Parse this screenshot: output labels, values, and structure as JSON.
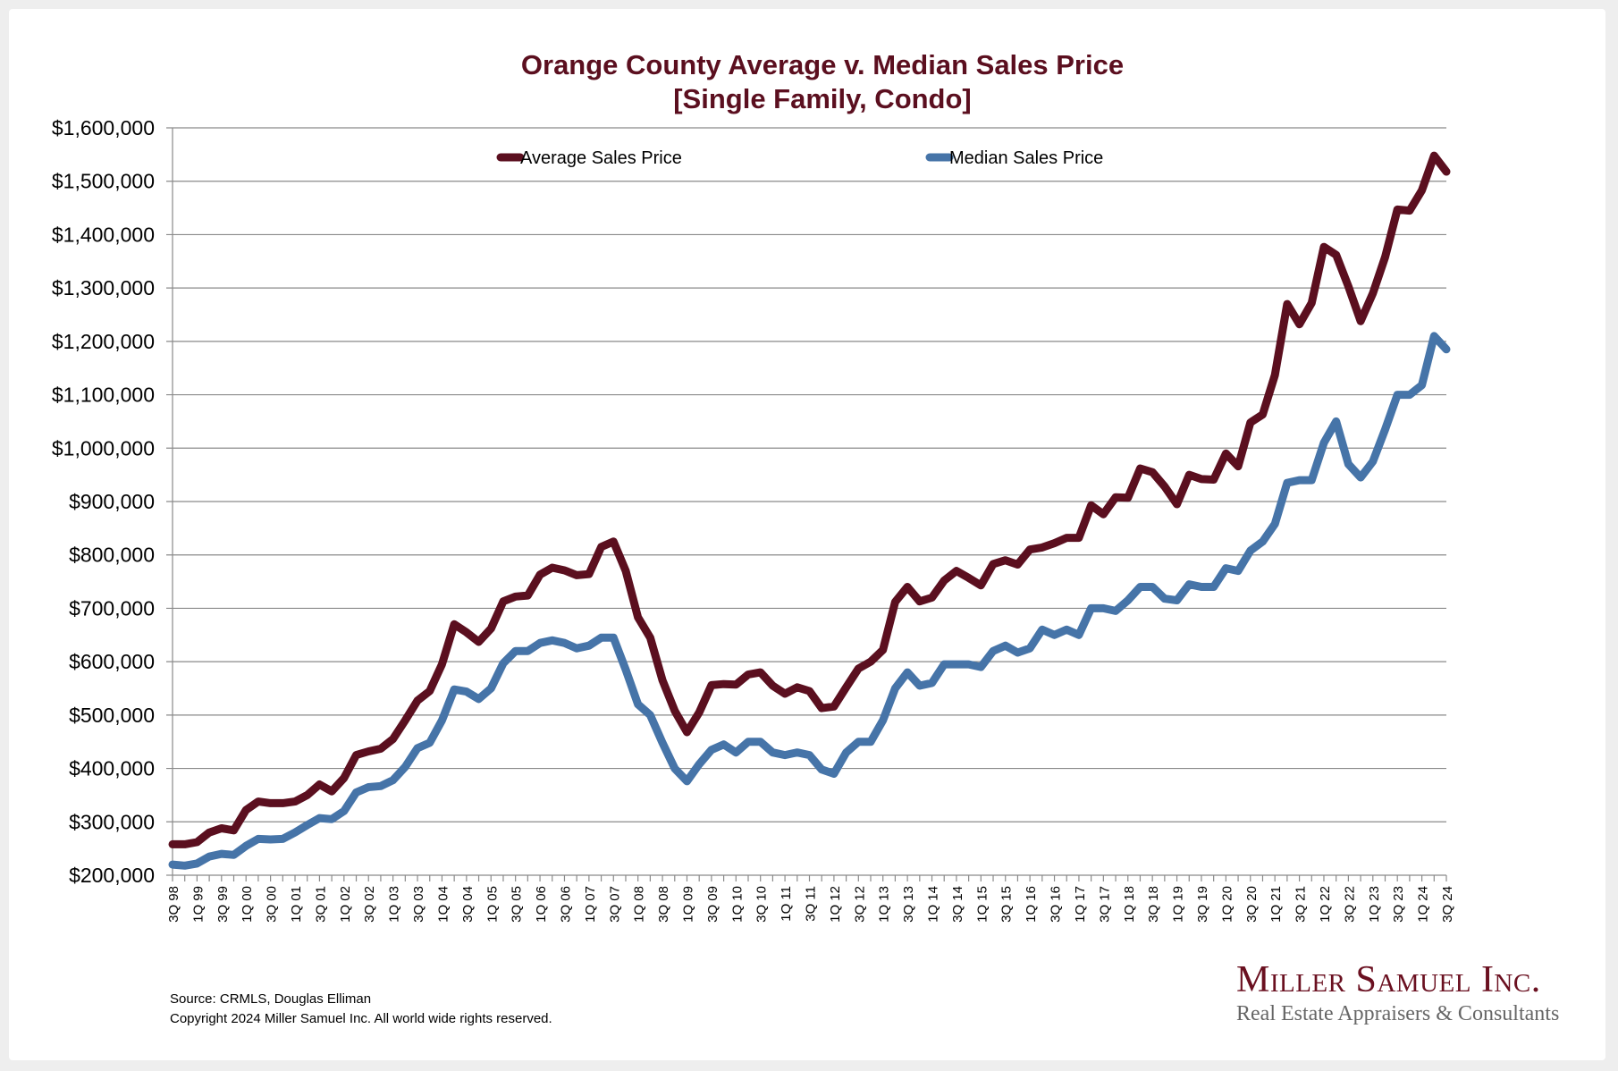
{
  "title_line1": "Orange County Average v. Median Sales Price",
  "title_line2": "[Single Family, Condo]",
  "footer": {
    "source": "Source: CRMLS, Douglas Elliman",
    "copyright": "Copyright 2024 Miller Samuel Inc.  All world wide rights reserved."
  },
  "logo": {
    "name": "Miller Samuel Inc.",
    "tagline": "Real Estate Appraisers & Consultants",
    "color": "#6a1020"
  },
  "chart_data": {
    "type": "line",
    "title": "Orange County Average v. Median Sales Price [Single Family, Condo]",
    "xlabel": "",
    "ylabel": "",
    "ylim": [
      200000,
      1600000
    ],
    "y_ticks": [
      200000,
      300000,
      400000,
      500000,
      600000,
      700000,
      800000,
      900000,
      1000000,
      1100000,
      1200000,
      1300000,
      1400000,
      1500000,
      1600000
    ],
    "y_tick_labels": [
      "$200,000",
      "$300,000",
      "$400,000",
      "$500,000",
      "$600,000",
      "$700,000",
      "$800,000",
      "$900,000",
      "$1,000,000",
      "$1,100,000",
      "$1,200,000",
      "$1,300,000",
      "$1,400,000",
      "$1,500,000",
      "$1,600,000"
    ],
    "grid": true,
    "legend_position": "top",
    "x_labels_shown_every": 2,
    "x": [
      "3Q 98",
      "4Q 98",
      "1Q 99",
      "2Q 99",
      "3Q 99",
      "4Q 99",
      "1Q 00",
      "2Q 00",
      "3Q 00",
      "4Q 00",
      "1Q 01",
      "2Q 01",
      "3Q 01",
      "4Q 01",
      "1Q 02",
      "2Q 02",
      "3Q 02",
      "4Q 02",
      "1Q 03",
      "2Q 03",
      "3Q 03",
      "4Q 03",
      "1Q 04",
      "2Q 04",
      "3Q 04",
      "4Q 04",
      "1Q 05",
      "2Q 05",
      "3Q 05",
      "4Q 05",
      "1Q 06",
      "2Q 06",
      "3Q 06",
      "4Q 06",
      "1Q 07",
      "2Q 07",
      "3Q 07",
      "4Q 07",
      "1Q 08",
      "2Q 08",
      "3Q 08",
      "4Q 08",
      "1Q 09",
      "2Q 09",
      "3Q 09",
      "4Q 09",
      "1Q 10",
      "2Q 10",
      "3Q 10",
      "4Q 10",
      "1Q 11",
      "2Q 11",
      "3Q 11",
      "4Q 11",
      "1Q 12",
      "2Q 12",
      "3Q 12",
      "4Q 12",
      "1Q 13",
      "2Q 13",
      "3Q 13",
      "4Q 13",
      "1Q 14",
      "2Q 14",
      "3Q 14",
      "4Q 14",
      "1Q 15",
      "2Q 15",
      "3Q 15",
      "4Q 15",
      "1Q 16",
      "2Q 16",
      "3Q 16",
      "4Q 16",
      "1Q 17",
      "2Q 17",
      "3Q 17",
      "4Q 17",
      "1Q 18",
      "2Q 18",
      "3Q 18",
      "4Q 18",
      "1Q 19",
      "2Q 19",
      "3Q 19",
      "4Q 19",
      "1Q 20",
      "2Q 20",
      "3Q 20",
      "4Q 20",
      "1Q 21",
      "2Q 21",
      "3Q 21",
      "4Q 21",
      "1Q 22",
      "2Q 22",
      "3Q 22",
      "4Q 22",
      "1Q 23",
      "2Q 23",
      "3Q 23",
      "4Q 23",
      "1Q 24",
      "2Q 24",
      "3Q 24"
    ],
    "series": [
      {
        "name": "Average Sales Price",
        "color": "#5b0f1f",
        "values": [
          258000,
          258000,
          262000,
          280000,
          288000,
          284000,
          322000,
          338000,
          335000,
          335000,
          338000,
          350000,
          370000,
          357000,
          382000,
          425000,
          432000,
          437000,
          455000,
          490000,
          527000,
          545000,
          595000,
          670000,
          655000,
          637000,
          662000,
          713000,
          722000,
          724000,
          763000,
          776000,
          771000,
          762000,
          764000,
          815000,
          825000,
          770000,
          683000,
          645000,
          565000,
          508000,
          468000,
          505000,
          556000,
          558000,
          557000,
          576000,
          580000,
          555000,
          540000,
          552000,
          545000,
          513000,
          516000,
          552000,
          587000,
          600000,
          622000,
          712000,
          740000,
          713000,
          720000,
          752000,
          770000,
          757000,
          743000,
          783000,
          790000,
          782000,
          810000,
          814000,
          822000,
          832000,
          832000,
          893000,
          876000,
          908000,
          907000,
          962000,
          955000,
          928000,
          895000,
          950000,
          942000,
          941000,
          990000,
          966000,
          1048000,
          1063000,
          1137000,
          1270000,
          1232000,
          1272000,
          1377000,
          1362000,
          1303000,
          1238000,
          1290000,
          1358000,
          1447000,
          1445000,
          1483000,
          1548000,
          1518000
        ]
      },
      {
        "name": "Median Sales Price",
        "color": "#4674a8",
        "values": [
          220000,
          218000,
          222000,
          235000,
          240000,
          238000,
          255000,
          268000,
          267000,
          268000,
          280000,
          294000,
          307000,
          305000,
          320000,
          355000,
          365000,
          367000,
          378000,
          403000,
          438000,
          448000,
          490000,
          548000,
          544000,
          530000,
          550000,
          597000,
          620000,
          620000,
          635000,
          640000,
          635000,
          625000,
          630000,
          645000,
          645000,
          585000,
          520000,
          500000,
          448000,
          400000,
          376000,
          408000,
          435000,
          445000,
          430000,
          450000,
          450000,
          430000,
          425000,
          430000,
          425000,
          398000,
          390000,
          430000,
          450000,
          450000,
          490000,
          550000,
          580000,
          555000,
          560000,
          595000,
          595000,
          595000,
          590000,
          620000,
          630000,
          617000,
          625000,
          660000,
          650000,
          660000,
          650000,
          700000,
          700000,
          695000,
          715000,
          740000,
          740000,
          718000,
          715000,
          745000,
          740000,
          740000,
          775000,
          770000,
          808000,
          825000,
          858000,
          935000,
          940000,
          940000,
          1010000,
          1050000,
          970000,
          945000,
          975000,
          1035000,
          1100000,
          1100000,
          1118000,
          1210000,
          1185000
        ]
      }
    ]
  }
}
